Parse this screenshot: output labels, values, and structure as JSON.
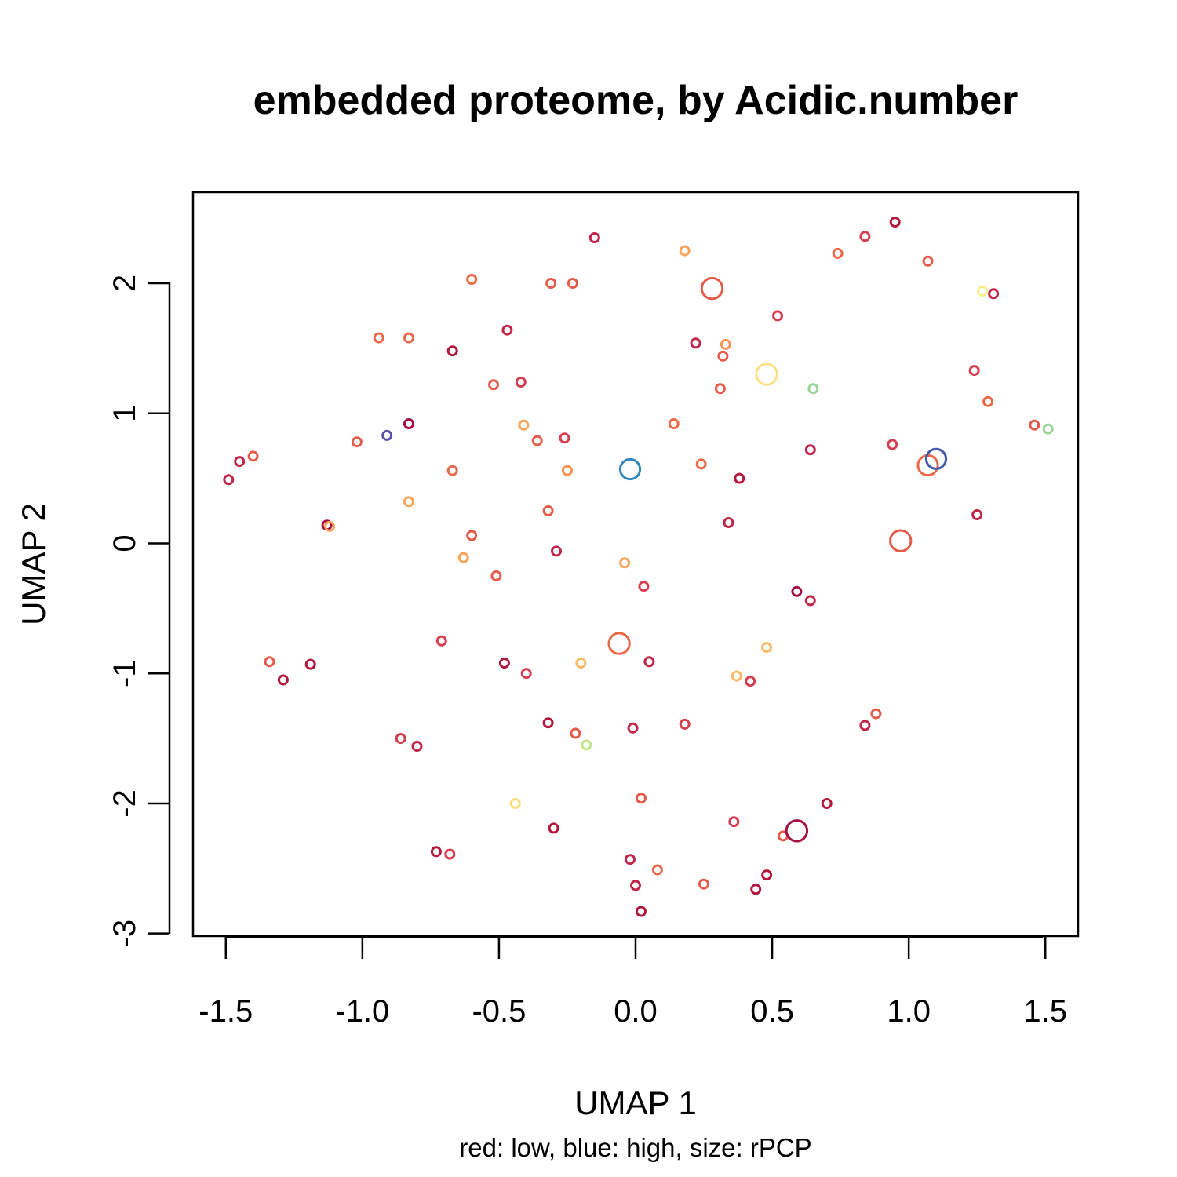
{
  "chart_data": {
    "type": "scatter",
    "title": "embedded proteome, by Acidic.number",
    "xlabel": "UMAP 1",
    "ylabel": "UMAP 2",
    "subtitle": "red: low, blue: high, size: rPCP",
    "xlim": [
      -1.62,
      1.62
    ],
    "ylim": [
      -3.02,
      2.7
    ],
    "xticks": [
      -1.5,
      -1.0,
      -0.5,
      0.0,
      0.5,
      1.0,
      1.5
    ],
    "xtick_labels": [
      "-1.5",
      "-1.0",
      "-0.5",
      "0.0",
      "0.5",
      "1.0",
      "1.5"
    ],
    "yticks": [
      -3,
      -2,
      -1,
      0,
      1,
      2
    ],
    "ytick_labels": [
      "-3",
      "-2",
      "-1",
      "0",
      "1",
      "2"
    ],
    "grid": false,
    "legend": "none",
    "points": [
      {
        "x": -1.49,
        "y": 0.49,
        "color": "#c0264a",
        "size": 1
      },
      {
        "x": -1.45,
        "y": 0.63,
        "color": "#c0264a",
        "size": 1
      },
      {
        "x": -1.4,
        "y": 0.67,
        "color": "#e45c49",
        "size": 1
      },
      {
        "x": -1.13,
        "y": 0.14,
        "color": "#a50f45",
        "size": 1
      },
      {
        "x": -1.12,
        "y": 0.13,
        "color": "#f9a45a",
        "size": 1
      },
      {
        "x": -1.02,
        "y": 0.78,
        "color": "#e45c49",
        "size": 1
      },
      {
        "x": -0.91,
        "y": 0.83,
        "color": "#5e4fa2",
        "size": 1
      },
      {
        "x": -0.83,
        "y": 0.92,
        "color": "#a50f45",
        "size": 1
      },
      {
        "x": -0.94,
        "y": 1.58,
        "color": "#ea6949",
        "size": 1
      },
      {
        "x": -0.83,
        "y": 1.58,
        "color": "#ea6949",
        "size": 1
      },
      {
        "x": -0.83,
        "y": 0.32,
        "color": "#f9a45a",
        "size": 1
      },
      {
        "x": -0.67,
        "y": 1.48,
        "color": "#b2183c",
        "size": 1
      },
      {
        "x": -0.6,
        "y": 2.03,
        "color": "#ea6949",
        "size": 1
      },
      {
        "x": -0.67,
        "y": 0.56,
        "color": "#ea6949",
        "size": 1
      },
      {
        "x": -0.6,
        "y": 0.06,
        "color": "#e45c49",
        "size": 1
      },
      {
        "x": -0.63,
        "y": -0.11,
        "color": "#f9a45a",
        "size": 1
      },
      {
        "x": -0.52,
        "y": 1.22,
        "color": "#e45c49",
        "size": 1
      },
      {
        "x": -0.51,
        "y": -0.25,
        "color": "#e45c49",
        "size": 1
      },
      {
        "x": -0.47,
        "y": 1.64,
        "color": "#c0264a",
        "size": 1
      },
      {
        "x": -0.42,
        "y": 1.24,
        "color": "#d53e4f",
        "size": 1
      },
      {
        "x": -0.41,
        "y": 0.91,
        "color": "#f9a45a",
        "size": 1
      },
      {
        "x": -0.36,
        "y": 0.79,
        "color": "#e45c49",
        "size": 1
      },
      {
        "x": -0.31,
        "y": 2.0,
        "color": "#e45c49",
        "size": 1
      },
      {
        "x": -0.23,
        "y": 2.0,
        "color": "#e45c49",
        "size": 1
      },
      {
        "x": -0.26,
        "y": 0.81,
        "color": "#d53e4f",
        "size": 1
      },
      {
        "x": -0.25,
        "y": 0.56,
        "color": "#f99455",
        "size": 1
      },
      {
        "x": -0.32,
        "y": 0.25,
        "color": "#e45c49",
        "size": 1
      },
      {
        "x": -0.29,
        "y": -0.06,
        "color": "#c0264a",
        "size": 1
      },
      {
        "x": -0.15,
        "y": 2.35,
        "color": "#c0264a",
        "size": 1
      },
      {
        "x": -0.04,
        "y": -0.15,
        "color": "#f9a45a",
        "size": 1
      },
      {
        "x": -0.02,
        "y": 0.57,
        "color": "#3288bd",
        "size": 2.3
      },
      {
        "x": 0.03,
        "y": -0.33,
        "color": "#d53e4f",
        "size": 1
      },
      {
        "x": 0.14,
        "y": 0.92,
        "color": "#ea6949",
        "size": 1
      },
      {
        "x": 0.18,
        "y": 2.25,
        "color": "#f9a45a",
        "size": 1
      },
      {
        "x": 0.28,
        "y": 1.96,
        "color": "#e45c49",
        "size": 2.4
      },
      {
        "x": 0.22,
        "y": 1.54,
        "color": "#c0264a",
        "size": 1
      },
      {
        "x": 0.24,
        "y": 0.61,
        "color": "#ea6949",
        "size": 1
      },
      {
        "x": 0.31,
        "y": 1.19,
        "color": "#e45c49",
        "size": 1
      },
      {
        "x": 0.32,
        "y": 1.44,
        "color": "#e45c49",
        "size": 1
      },
      {
        "x": 0.33,
        "y": 1.53,
        "color": "#f99455",
        "size": 1
      },
      {
        "x": 0.34,
        "y": 0.16,
        "color": "#c0264a",
        "size": 1
      },
      {
        "x": 0.38,
        "y": 0.5,
        "color": "#b2183c",
        "size": 1
      },
      {
        "x": 0.48,
        "y": 1.3,
        "color": "#fee08b",
        "size": 2.4
      },
      {
        "x": 0.52,
        "y": 1.75,
        "color": "#d53e4f",
        "size": 1
      },
      {
        "x": 0.65,
        "y": 1.19,
        "color": "#99d594",
        "size": 1
      },
      {
        "x": 0.64,
        "y": 0.72,
        "color": "#c0264a",
        "size": 1
      },
      {
        "x": 0.74,
        "y": 2.23,
        "color": "#ea6949",
        "size": 1
      },
      {
        "x": 0.84,
        "y": 2.36,
        "color": "#d53e4f",
        "size": 1
      },
      {
        "x": 0.95,
        "y": 2.47,
        "color": "#b2183c",
        "size": 1
      },
      {
        "x": 1.07,
        "y": 2.17,
        "color": "#e45c49",
        "size": 1
      },
      {
        "x": 0.94,
        "y": 0.76,
        "color": "#d53e4f",
        "size": 1
      },
      {
        "x": 0.97,
        "y": 0.02,
        "color": "#e45c49",
        "size": 2.4
      },
      {
        "x": 1.07,
        "y": 0.6,
        "color": "#ea6949",
        "size": 2.3
      },
      {
        "x": 1.1,
        "y": 0.65,
        "color": "#3e5aa8",
        "size": 2.3
      },
      {
        "x": 1.24,
        "y": 1.33,
        "color": "#d53e4f",
        "size": 1
      },
      {
        "x": 1.27,
        "y": 1.94,
        "color": "#f6ef8f",
        "size": 1
      },
      {
        "x": 1.31,
        "y": 1.92,
        "color": "#c0264a",
        "size": 1
      },
      {
        "x": 1.29,
        "y": 1.09,
        "color": "#ea6949",
        "size": 1
      },
      {
        "x": 1.25,
        "y": 0.22,
        "color": "#c0264a",
        "size": 1
      },
      {
        "x": 1.46,
        "y": 0.91,
        "color": "#e45c49",
        "size": 1
      },
      {
        "x": 1.51,
        "y": 0.88,
        "color": "#99d594",
        "size": 1
      },
      {
        "x": -1.34,
        "y": -0.91,
        "color": "#e45c49",
        "size": 1
      },
      {
        "x": -1.29,
        "y": -1.05,
        "color": "#b2183c",
        "size": 1
      },
      {
        "x": -1.19,
        "y": -0.93,
        "color": "#b2183c",
        "size": 1
      },
      {
        "x": -0.71,
        "y": -0.75,
        "color": "#d53e4f",
        "size": 1
      },
      {
        "x": -0.48,
        "y": -0.92,
        "color": "#b2183c",
        "size": 1
      },
      {
        "x": -0.4,
        "y": -1.0,
        "color": "#d53e4f",
        "size": 1
      },
      {
        "x": -0.2,
        "y": -0.92,
        "color": "#fbb968",
        "size": 1
      },
      {
        "x": -0.06,
        "y": -0.77,
        "color": "#ea6949",
        "size": 2.4
      },
      {
        "x": 0.05,
        "y": -0.91,
        "color": "#c0264a",
        "size": 1
      },
      {
        "x": 0.37,
        "y": -1.02,
        "color": "#fbb968",
        "size": 1
      },
      {
        "x": 0.42,
        "y": -1.06,
        "color": "#d53e4f",
        "size": 1
      },
      {
        "x": 0.48,
        "y": -0.8,
        "color": "#fbb968",
        "size": 1
      },
      {
        "x": 0.59,
        "y": -0.37,
        "color": "#a50f45",
        "size": 1
      },
      {
        "x": 0.64,
        "y": -0.44,
        "color": "#c0264a",
        "size": 1
      },
      {
        "x": -0.86,
        "y": -1.5,
        "color": "#d53e4f",
        "size": 1
      },
      {
        "x": -0.8,
        "y": -1.56,
        "color": "#c0264a",
        "size": 1
      },
      {
        "x": -0.32,
        "y": -1.38,
        "color": "#b2183c",
        "size": 1
      },
      {
        "x": -0.22,
        "y": -1.46,
        "color": "#e45c49",
        "size": 1
      },
      {
        "x": -0.18,
        "y": -1.55,
        "color": "#c4e68b",
        "size": 1
      },
      {
        "x": -0.01,
        "y": -1.42,
        "color": "#c0264a",
        "size": 1
      },
      {
        "x": 0.18,
        "y": -1.39,
        "color": "#d53e4f",
        "size": 1
      },
      {
        "x": 0.84,
        "y": -1.4,
        "color": "#c0264a",
        "size": 1
      },
      {
        "x": 0.88,
        "y": -1.31,
        "color": "#e45c49",
        "size": 1
      },
      {
        "x": -0.44,
        "y": -2.0,
        "color": "#fddc7a",
        "size": 1
      },
      {
        "x": 0.02,
        "y": -1.96,
        "color": "#e45c49",
        "size": 1
      },
      {
        "x": -0.3,
        "y": -2.19,
        "color": "#b2183c",
        "size": 1
      },
      {
        "x": 0.36,
        "y": -2.14,
        "color": "#d53e4f",
        "size": 1
      },
      {
        "x": 0.54,
        "y": -2.25,
        "color": "#e45c49",
        "size": 1
      },
      {
        "x": 0.59,
        "y": -2.21,
        "color": "#a50f45",
        "size": 2.4
      },
      {
        "x": 0.7,
        "y": -2.0,
        "color": "#b2183c",
        "size": 1
      },
      {
        "x": -0.73,
        "y": -2.37,
        "color": "#b2183c",
        "size": 1
      },
      {
        "x": -0.68,
        "y": -2.39,
        "color": "#d53e4f",
        "size": 1
      },
      {
        "x": -0.02,
        "y": -2.43,
        "color": "#c0264a",
        "size": 1
      },
      {
        "x": 0.08,
        "y": -2.51,
        "color": "#ea6949",
        "size": 1
      },
      {
        "x": 0.0,
        "y": -2.63,
        "color": "#c0264a",
        "size": 1
      },
      {
        "x": 0.25,
        "y": -2.62,
        "color": "#e45c49",
        "size": 1
      },
      {
        "x": 0.44,
        "y": -2.66,
        "color": "#b2183c",
        "size": 1
      },
      {
        "x": 0.48,
        "y": -2.55,
        "color": "#b2183c",
        "size": 1
      },
      {
        "x": 0.02,
        "y": -2.83,
        "color": "#b2183c",
        "size": 1
      }
    ]
  }
}
